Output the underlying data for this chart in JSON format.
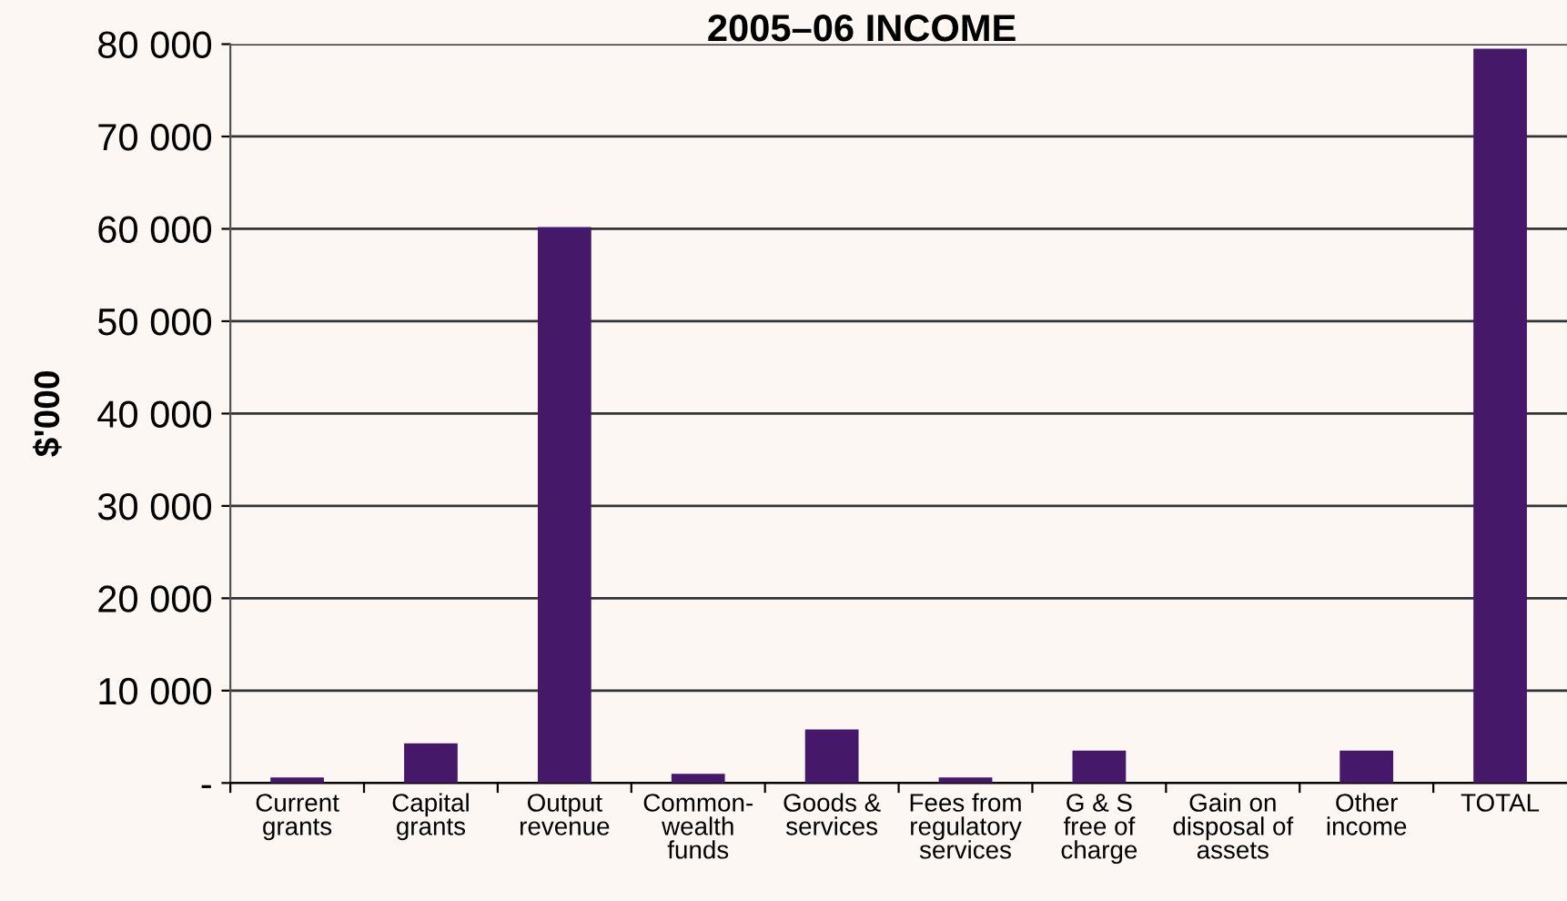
{
  "chart_data": {
    "type": "bar",
    "title": "2005–06 INCOME",
    "ylabel": "$'000",
    "categories": [
      "Current\ngrants",
      "Capital\ngrants",
      "Output\nrevenue",
      "Common-\nwealth\nfunds",
      "Goods &\nservices",
      "Fees from\nregulatory\nservices",
      "G & S\nfree of\ncharge",
      "Gain on\ndisposal of\nassets",
      "Other\nincome",
      "TOTAL"
    ],
    "values": [
      600,
      4300,
      60200,
      1000,
      5800,
      600,
      3500,
      0,
      3500,
      79500
    ],
    "color": "#45186a",
    "ylim": [
      0,
      80000
    ],
    "yticks": [
      {
        "value": 0,
        "label": "-"
      },
      {
        "value": 10000,
        "label": "10 000"
      },
      {
        "value": 20000,
        "label": "20 000"
      },
      {
        "value": 30000,
        "label": "30 000"
      },
      {
        "value": 40000,
        "label": "40 000"
      },
      {
        "value": 50000,
        "label": "50 000"
      },
      {
        "value": 60000,
        "label": "60 000"
      },
      {
        "value": 70000,
        "label": "70 000"
      },
      {
        "value": 80000,
        "label": "80 000"
      }
    ],
    "grid": "y",
    "legend": false
  }
}
